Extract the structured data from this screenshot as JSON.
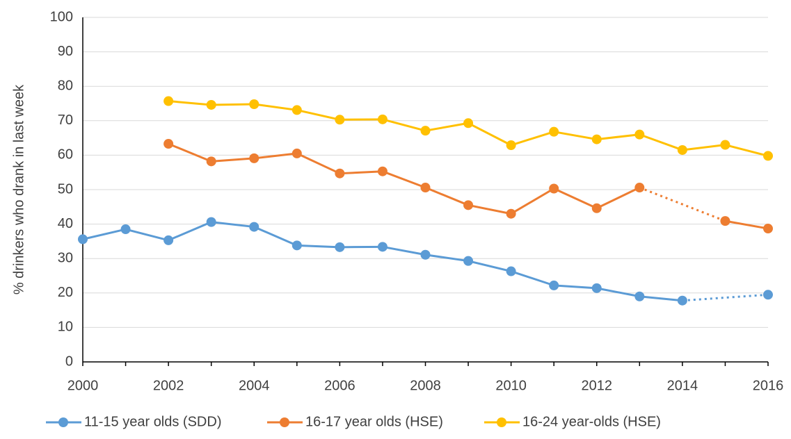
{
  "chart_data": {
    "type": "line",
    "y_label": "% drinkers who drank in last week",
    "x": [
      2000,
      2001,
      2002,
      2003,
      2004,
      2005,
      2006,
      2007,
      2008,
      2009,
      2010,
      2011,
      2012,
      2013,
      2014,
      2015,
      2016
    ],
    "xlim": [
      2000,
      2016
    ],
    "xticks": [
      2000,
      2002,
      2004,
      2006,
      2008,
      2010,
      2012,
      2014,
      2016
    ],
    "ylim": [
      0,
      100
    ],
    "yticks": [
      0,
      10,
      20,
      30,
      40,
      50,
      60,
      70,
      80,
      90,
      100
    ],
    "grid": true,
    "legend": "bottom",
    "gap_line": "dotted",
    "series": [
      {
        "name": "11-15 year olds (SDD)",
        "color": "#5b9bd5",
        "values": [
          35.6,
          38.5,
          35.3,
          40.6,
          39.2,
          33.8,
          33.3,
          33.4,
          31.1,
          29.3,
          26.3,
          22.2,
          21.4,
          19.0,
          17.8,
          null,
          19.5
        ]
      },
      {
        "name": "16-17 year olds (HSE)",
        "color": "#ed7d31",
        "values": [
          null,
          null,
          63.3,
          58.2,
          59.1,
          60.5,
          54.7,
          55.3,
          50.6,
          45.5,
          43.0,
          50.3,
          44.6,
          50.6,
          null,
          40.9,
          38.7
        ]
      },
      {
        "name": "16-24 year-olds (HSE)",
        "color": "#ffc000",
        "values": [
          null,
          null,
          75.7,
          74.6,
          74.8,
          73.1,
          70.3,
          70.4,
          67.1,
          69.3,
          62.9,
          66.8,
          64.6,
          66.0,
          61.5,
          63.0,
          59.8
        ]
      }
    ]
  }
}
